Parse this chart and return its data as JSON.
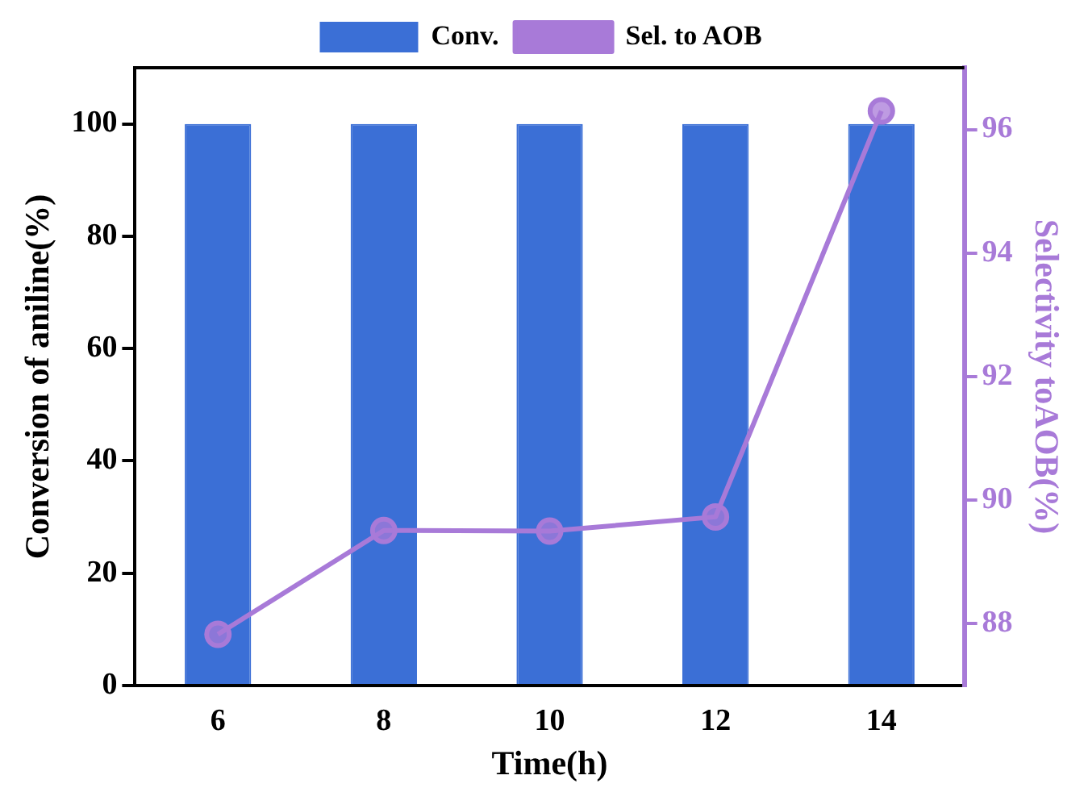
{
  "chart_data": {
    "type": "bar",
    "xlabel": "Time(h)",
    "ylabel": "Conversion of aniline(%)",
    "y2label": "Selectivity toAOB(%)",
    "categories": [
      "6",
      "8",
      "10",
      "12",
      "14"
    ],
    "series": [
      {
        "name": "Conv.",
        "color": "#3b6fd6",
        "values": [
          100,
          100,
          100,
          100,
          100
        ]
      },
      {
        "name": "Sel. to AOB",
        "type": "line",
        "axis": "y2",
        "color": "#a87ad8",
        "marker": "circle",
        "values": [
          87.83,
          89.51,
          89.5,
          89.73,
          96.3
        ]
      }
    ],
    "ylim": [
      0,
      110
    ],
    "yticks": [
      0,
      20,
      40,
      60,
      80,
      100
    ],
    "y2lim": [
      87,
      97
    ],
    "y2ticks": [
      88,
      90,
      92,
      94,
      96
    ],
    "grid": false,
    "legend": "top"
  }
}
